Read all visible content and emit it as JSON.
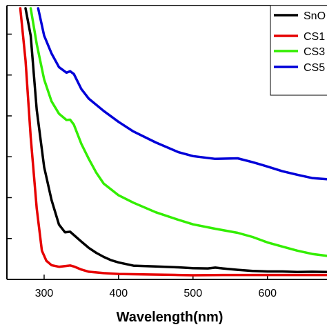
{
  "chart_data": {
    "type": "line",
    "xlabel": "Wavelength(nm)",
    "ylabel": "",
    "xlim": [
      250,
      680
    ],
    "ylim": [
      0,
      10
    ],
    "x_ticks": [
      300,
      400,
      500,
      600
    ],
    "y_ticks_count": 6,
    "grid": false,
    "legend_position": "top-right",
    "series": [
      {
        "name": "SnO",
        "color": "#000000",
        "points": [
          [
            275,
            9.9
          ],
          [
            282,
            8.9
          ],
          [
            290,
            6.2
          ],
          [
            300,
            4.1
          ],
          [
            310,
            2.9
          ],
          [
            320,
            2.0
          ],
          [
            328,
            1.72
          ],
          [
            335,
            1.74
          ],
          [
            340,
            1.62
          ],
          [
            350,
            1.38
          ],
          [
            360,
            1.15
          ],
          [
            370,
            0.97
          ],
          [
            380,
            0.82
          ],
          [
            390,
            0.7
          ],
          [
            400,
            0.62
          ],
          [
            420,
            0.5
          ],
          [
            440,
            0.48
          ],
          [
            450,
            0.47
          ],
          [
            480,
            0.44
          ],
          [
            500,
            0.41
          ],
          [
            520,
            0.4
          ],
          [
            530,
            0.43
          ],
          [
            540,
            0.4
          ],
          [
            560,
            0.35
          ],
          [
            580,
            0.31
          ],
          [
            600,
            0.29
          ],
          [
            620,
            0.29
          ],
          [
            640,
            0.27
          ],
          [
            660,
            0.28
          ],
          [
            680,
            0.27
          ]
        ]
      },
      {
        "name": "CS1",
        "color": "#e60000",
        "points": [
          [
            268,
            9.9
          ],
          [
            275,
            8.0
          ],
          [
            282,
            5.2
          ],
          [
            290,
            2.6
          ],
          [
            297,
            1.05
          ],
          [
            303,
            0.68
          ],
          [
            310,
            0.52
          ],
          [
            320,
            0.46
          ],
          [
            330,
            0.49
          ],
          [
            335,
            0.51
          ],
          [
            340,
            0.47
          ],
          [
            350,
            0.36
          ],
          [
            360,
            0.28
          ],
          [
            380,
            0.23
          ],
          [
            400,
            0.2
          ],
          [
            440,
            0.18
          ],
          [
            480,
            0.16
          ],
          [
            500,
            0.15
          ],
          [
            540,
            0.16
          ],
          [
            580,
            0.16
          ],
          [
            620,
            0.16
          ],
          [
            660,
            0.16
          ],
          [
            680,
            0.16
          ]
        ]
      },
      {
        "name": "CS3",
        "color": "#33ee00",
        "points": [
          [
            282,
            9.9
          ],
          [
            290,
            8.6
          ],
          [
            300,
            7.3
          ],
          [
            310,
            6.5
          ],
          [
            320,
            6.05
          ],
          [
            330,
            5.82
          ],
          [
            335,
            5.83
          ],
          [
            340,
            5.65
          ],
          [
            350,
            4.95
          ],
          [
            360,
            4.4
          ],
          [
            370,
            3.9
          ],
          [
            380,
            3.5
          ],
          [
            400,
            3.07
          ],
          [
            420,
            2.8
          ],
          [
            450,
            2.45
          ],
          [
            480,
            2.18
          ],
          [
            500,
            2.01
          ],
          [
            530,
            1.85
          ],
          [
            560,
            1.7
          ],
          [
            580,
            1.55
          ],
          [
            600,
            1.35
          ],
          [
            620,
            1.2
          ],
          [
            640,
            1.05
          ],
          [
            660,
            0.93
          ],
          [
            680,
            0.86
          ]
        ]
      },
      {
        "name": "CS5",
        "color": "#0000d8",
        "points": [
          [
            292,
            9.9
          ],
          [
            300,
            8.9
          ],
          [
            310,
            8.25
          ],
          [
            320,
            7.75
          ],
          [
            330,
            7.55
          ],
          [
            335,
            7.6
          ],
          [
            340,
            7.5
          ],
          [
            350,
            6.95
          ],
          [
            360,
            6.6
          ],
          [
            380,
            6.15
          ],
          [
            400,
            5.75
          ],
          [
            420,
            5.4
          ],
          [
            450,
            5.0
          ],
          [
            480,
            4.65
          ],
          [
            500,
            4.5
          ],
          [
            530,
            4.4
          ],
          [
            560,
            4.42
          ],
          [
            580,
            4.28
          ],
          [
            600,
            4.12
          ],
          [
            620,
            3.95
          ],
          [
            640,
            3.82
          ],
          [
            660,
            3.7
          ],
          [
            680,
            3.66
          ]
        ]
      }
    ]
  }
}
